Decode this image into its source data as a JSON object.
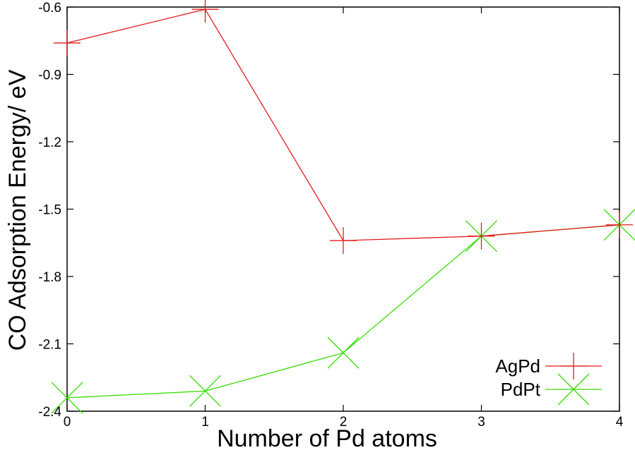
{
  "chart_data": {
    "type": "line",
    "xlabel": "Number of Pd atoms",
    "ylabel": "CO Adsorption Energy/ eV",
    "xlim": [
      0,
      4
    ],
    "ylim": [
      -2.4,
      -0.6
    ],
    "xticks": [
      0,
      1,
      2,
      3,
      4
    ],
    "yticks": [
      -0.6,
      -0.9,
      -1.2,
      -1.5,
      -1.8,
      -2.1,
      -2.4
    ],
    "xtick_labels": [
      "0",
      "1",
      "2",
      "3",
      "4"
    ],
    "ytick_labels": [
      "-0.6",
      "-0.9",
      "-1.2",
      "-1.5",
      "-1.8",
      "-2.1",
      "-2.4"
    ],
    "grid": false,
    "legend_position": "bottom-right",
    "x": [
      0,
      1,
      2,
      3,
      4
    ],
    "series": [
      {
        "name": "AgPd",
        "marker": "plus",
        "color": "#e41a1c",
        "values": [
          -0.76,
          -0.61,
          -1.64,
          -1.62,
          -1.57
        ]
      },
      {
        "name": "PdPt",
        "marker": "cross",
        "color": "#33dd00",
        "values": [
          -2.34,
          -2.31,
          -2.14,
          -1.62,
          -1.57
        ]
      }
    ]
  }
}
